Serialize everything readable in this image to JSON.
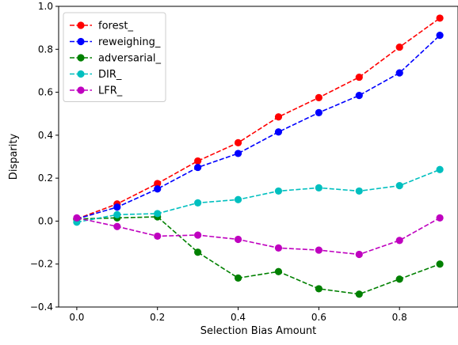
{
  "chart_data": {
    "type": "line",
    "xlabel": "Selection Bias Amount",
    "ylabel": "Disparity",
    "xlim": [
      -0.045,
      0.945
    ],
    "ylim": [
      -0.4,
      1.0
    ],
    "xticks": [
      0.0,
      0.2,
      0.4,
      0.6,
      0.8
    ],
    "yticks": [
      -0.4,
      -0.2,
      0.0,
      0.2,
      0.4,
      0.6,
      0.8,
      1.0
    ],
    "grid": false,
    "legend_position": "top-left",
    "x": [
      0.0,
      0.1,
      0.2,
      0.3,
      0.4,
      0.5,
      0.6,
      0.7,
      0.8,
      0.9
    ],
    "series": [
      {
        "name": "forest_",
        "color": "#ff0000",
        "values": [
          0.01,
          0.08,
          0.175,
          0.28,
          0.365,
          0.485,
          0.575,
          0.67,
          0.81,
          0.945
        ]
      },
      {
        "name": "reweighing_",
        "color": "#0000ff",
        "values": [
          0.01,
          0.065,
          0.15,
          0.25,
          0.315,
          0.415,
          0.505,
          0.585,
          0.69,
          0.865
        ]
      },
      {
        "name": "adversarial_",
        "color": "#008000",
        "values": [
          0.01,
          0.015,
          0.02,
          -0.145,
          -0.265,
          -0.235,
          -0.315,
          -0.34,
          -0.27,
          -0.2
        ]
      },
      {
        "name": "DIR_",
        "color": "#00bfbf",
        "values": [
          -0.005,
          0.03,
          0.035,
          0.085,
          0.1,
          0.14,
          0.155,
          0.14,
          0.165,
          0.24
        ]
      },
      {
        "name": "LFR_",
        "color": "#bf00bf",
        "values": [
          0.015,
          -0.025,
          -0.07,
          -0.065,
          -0.085,
          -0.125,
          -0.135,
          -0.155,
          -0.09,
          0.015
        ]
      }
    ]
  }
}
